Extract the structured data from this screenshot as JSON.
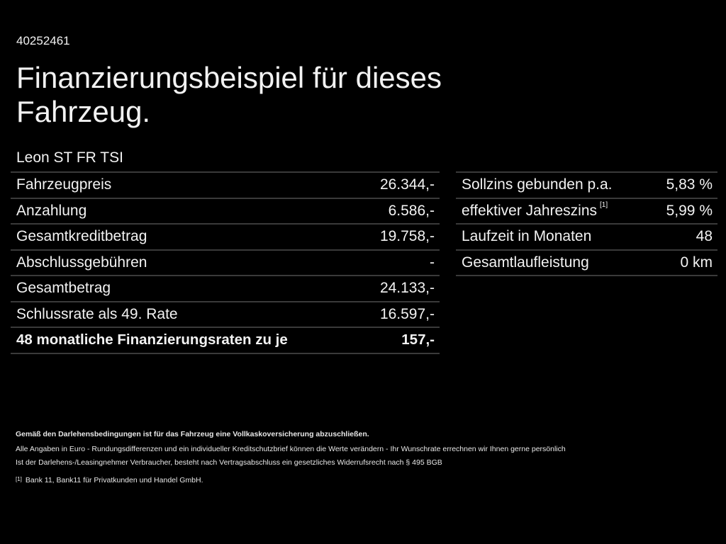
{
  "code": "40252461",
  "title": "Finanzierungsbeispiel für dieses Fahrzeug.",
  "model": "Leon ST FR TSI",
  "left_table": [
    {
      "label": "Fahrzeugpreis",
      "value": "26.344,-"
    },
    {
      "label": "Anzahlung",
      "value": "6.586,-"
    },
    {
      "label": "Gesamtkreditbetrag",
      "value": "19.758,-"
    },
    {
      "label": "Abschlussgebühren",
      "value": "-"
    },
    {
      "label": "Gesamtbetrag",
      "value": "24.133,-"
    },
    {
      "label": "Schlussrate als 49. Rate",
      "value": "16.597,-"
    },
    {
      "label": "48 monatliche Finanzierungsraten zu je",
      "value": "157,-"
    }
  ],
  "right_table": [
    {
      "label": "Sollzins gebunden p.a.",
      "value": "5,83 %"
    },
    {
      "label": "effektiver Jahreszins",
      "sup": "[1]",
      "value": "5,99 %"
    },
    {
      "label": "Laufzeit in Monaten",
      "value": "48"
    },
    {
      "label": "Gesamtlaufleistung",
      "value": "0 km"
    }
  ],
  "footer": {
    "insurance": "Gemäß den Darlehensbedingungen ist für das Fahrzeug eine Vollkaskoversicherung abzuschließen.",
    "note1": "Alle Angaben in Euro - Rundungsdifferenzen und ein individueller Kreditschutzbrief können die Werte verändern - Ihr Wunschrate errechnen wir Ihnen gerne persönlich",
    "note2": "Ist der Darlehens-/Leasingnehmer Verbraucher, besteht nach Vertragsabschluss ein gesetzliches Widerrufsrecht nach § 495 BGB",
    "footnote_mark": "[1]",
    "footnote": "Bank 11, Bank11 für Privatkunden und Handel GmbH."
  }
}
